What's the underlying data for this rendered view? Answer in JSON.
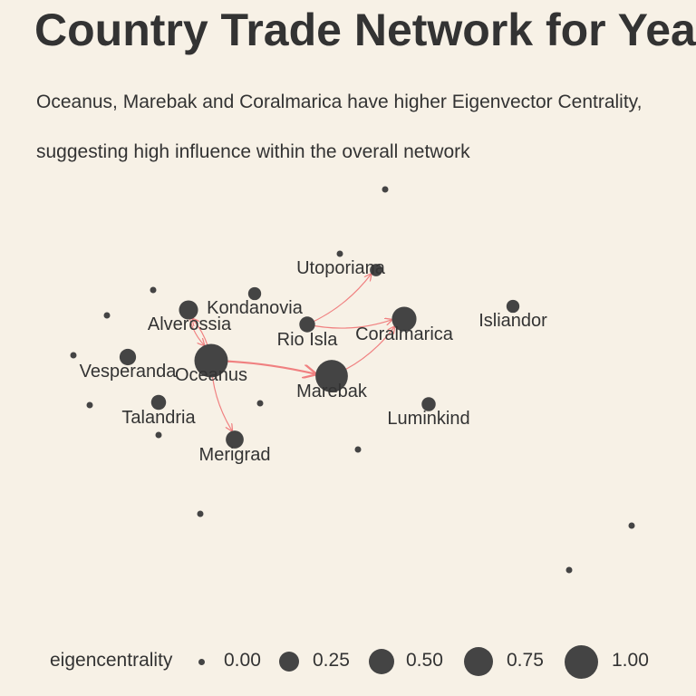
{
  "title": "Country Trade Network for Year",
  "subtitle_lines": [
    "Oceanus, Marebak and Coralmarica have higher Eigenvector Centrality,",
    "suggesting high influence within the overall network"
  ],
  "colors": {
    "background": "#f7f1e6",
    "node": "#444444",
    "edge": "#f08080",
    "text": "#333333"
  },
  "nodes": [
    {
      "id": "Oceanus",
      "label": "Oceanus",
      "eigencentrality": 1.0
    },
    {
      "id": "Marebak",
      "label": "Marebak",
      "eigencentrality": 0.92
    },
    {
      "id": "Coralmarica",
      "label": "Coralmarica",
      "eigencentrality": 0.45
    },
    {
      "id": "Alverossia",
      "label": "Alverossia",
      "eigencentrality": 0.22
    },
    {
      "id": "Kondanovia",
      "label": "Kondanovia",
      "eigencentrality": 0.06
    },
    {
      "id": "Utoporiana",
      "label": "Utoporiana",
      "eigencentrality": 0.05
    },
    {
      "id": "RioIsla",
      "label": "Rio Isla",
      "eigencentrality": 0.12
    },
    {
      "id": "Isliandor",
      "label": "Isliandor",
      "eigencentrality": 0.06
    },
    {
      "id": "Vesperanda",
      "label": "Vesperanda",
      "eigencentrality": 0.14
    },
    {
      "id": "Talandria",
      "label": "Talandria",
      "eigencentrality": 0.1
    },
    {
      "id": "Merigrad",
      "label": "Merigrad",
      "eigencentrality": 0.18
    },
    {
      "id": "Luminkind",
      "label": "Luminkind",
      "eigencentrality": 0.08
    },
    {
      "id": "u1",
      "label": "",
      "eigencentrality": 0.0
    },
    {
      "id": "u2",
      "label": "",
      "eigencentrality": 0.0
    },
    {
      "id": "u3",
      "label": "",
      "eigencentrality": 0.0
    },
    {
      "id": "u4",
      "label": "",
      "eigencentrality": 0.0
    },
    {
      "id": "u5",
      "label": "",
      "eigencentrality": 0.0
    },
    {
      "id": "u6",
      "label": "",
      "eigencentrality": 0.0
    },
    {
      "id": "u7",
      "label": "",
      "eigencentrality": 0.0
    },
    {
      "id": "u8",
      "label": "",
      "eigencentrality": 0.0
    },
    {
      "id": "u9",
      "label": "",
      "eigencentrality": 0.0
    },
    {
      "id": "u10",
      "label": "",
      "eigencentrality": 0.0
    },
    {
      "id": "u11",
      "label": "",
      "eigencentrality": 0.0
    },
    {
      "id": "u12",
      "label": "",
      "eigencentrality": 0.0
    }
  ],
  "edges": [
    {
      "from": "Oceanus",
      "to": "Marebak",
      "weight": 2
    },
    {
      "from": "Marebak",
      "to": "Coralmarica",
      "weight": 1
    },
    {
      "from": "RioIsla",
      "to": "Coralmarica",
      "weight": 1
    },
    {
      "from": "RioIsla",
      "to": "Utoporiana",
      "weight": 1
    },
    {
      "from": "Oceanus",
      "to": "Merigrad",
      "weight": 1
    },
    {
      "from": "Oceanus",
      "to": "Alverossia",
      "weight": 1
    },
    {
      "from": "Alverossia",
      "to": "Oceanus",
      "weight": 1
    }
  ],
  "legend": {
    "title": "eigencentrality",
    "items": [
      {
        "label": "0.00",
        "value": 0.0
      },
      {
        "label": "0.25",
        "value": 0.25
      },
      {
        "label": "0.50",
        "value": 0.5
      },
      {
        "label": "0.75",
        "value": 0.75
      },
      {
        "label": "1.00",
        "value": 1.0
      }
    ]
  }
}
